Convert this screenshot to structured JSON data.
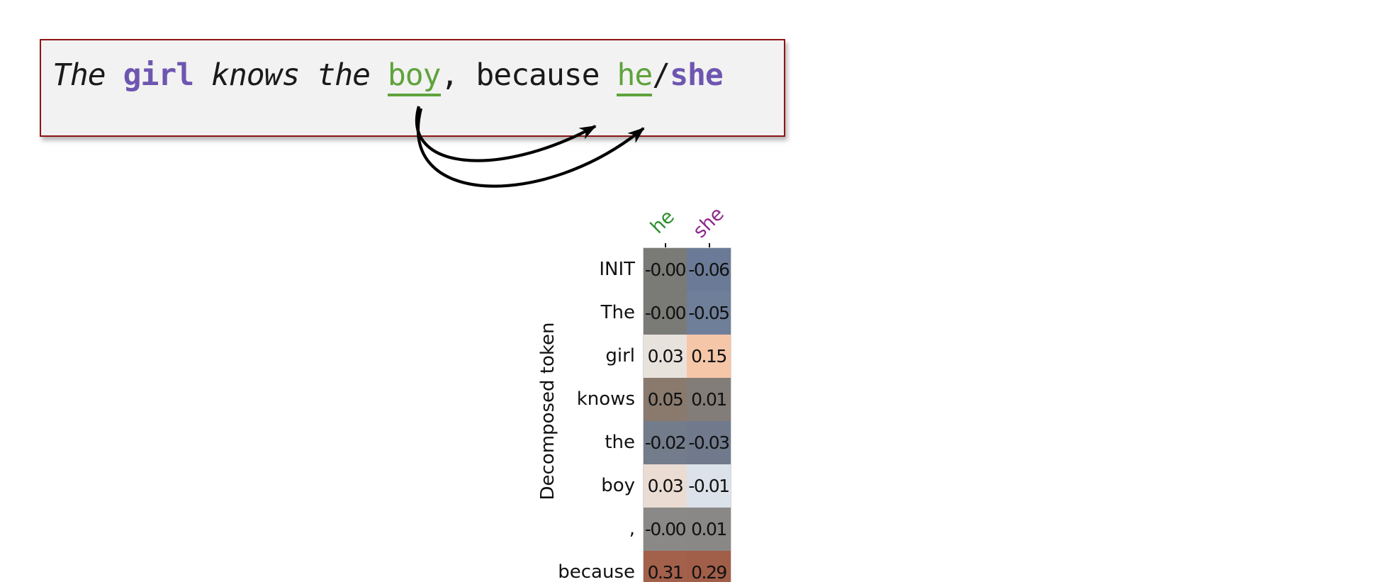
{
  "figure": {
    "box_border_color": "#8e1414",
    "box_fill_color": "#f2f2f2",
    "purple_accent": "#6e56b0",
    "green_accent": "#5fa33c",
    "arrow_color": "#000000"
  },
  "sentence": {
    "tokens": [
      {
        "text": "The ",
        "style": "italic"
      },
      {
        "text": "girl",
        "style": "purple-bold"
      },
      {
        "text": " knows the ",
        "style": "italic"
      },
      {
        "text": "boy",
        "style": "green-underline"
      },
      {
        "text": ", because ",
        "style": "plain"
      },
      {
        "text": "he",
        "style": "green-underline"
      },
      {
        "text": "/",
        "style": "plain"
      },
      {
        "text": "she",
        "style": "purple-bold"
      }
    ]
  },
  "chart_data": {
    "type": "heatmap",
    "title": "",
    "xlabel": "",
    "ylabel": "Decomposed token",
    "legend_position": "none",
    "grid": false,
    "columns": [
      {
        "label": "he",
        "color": "#2f8f2f"
      },
      {
        "label": "she",
        "color": "#8f2a8f"
      }
    ],
    "rows": [
      "INIT",
      "The",
      "girl",
      "knows",
      "the",
      "boy",
      ",",
      "because"
    ],
    "values": [
      [
        -0.0,
        -0.06
      ],
      [
        -0.0,
        -0.05
      ],
      [
        0.03,
        0.15
      ],
      [
        0.05,
        0.01
      ],
      [
        -0.02,
        -0.03
      ],
      [
        0.03,
        -0.01
      ],
      [
        -0.0,
        0.01
      ],
      [
        0.31,
        0.29
      ]
    ],
    "display_values": [
      [
        "-0.00",
        "-0.06"
      ],
      [
        "-0.00",
        "-0.05"
      ],
      [
        "0.03",
        "0.15"
      ],
      [
        "0.05",
        "0.01"
      ],
      [
        "-0.02",
        "-0.03"
      ],
      [
        "0.03",
        "-0.01"
      ],
      [
        "-0.00",
        "0.01"
      ],
      [
        "0.31",
        "0.29"
      ]
    ],
    "cell_colors": [
      [
        "#7a7a77",
        "#6b7b97"
      ],
      [
        "#7a7a77",
        "#6f7f9a"
      ],
      [
        "#e8e2dd",
        "#f5c6a8"
      ],
      [
        "#897a6d",
        "#827d79"
      ],
      [
        "#737c8b",
        "#707a8c"
      ],
      [
        "#eadcd3",
        "#dbe2ea"
      ],
      [
        "#8a8987",
        "#898886"
      ],
      [
        "#a3604b",
        "#a15e49"
      ]
    ]
  }
}
